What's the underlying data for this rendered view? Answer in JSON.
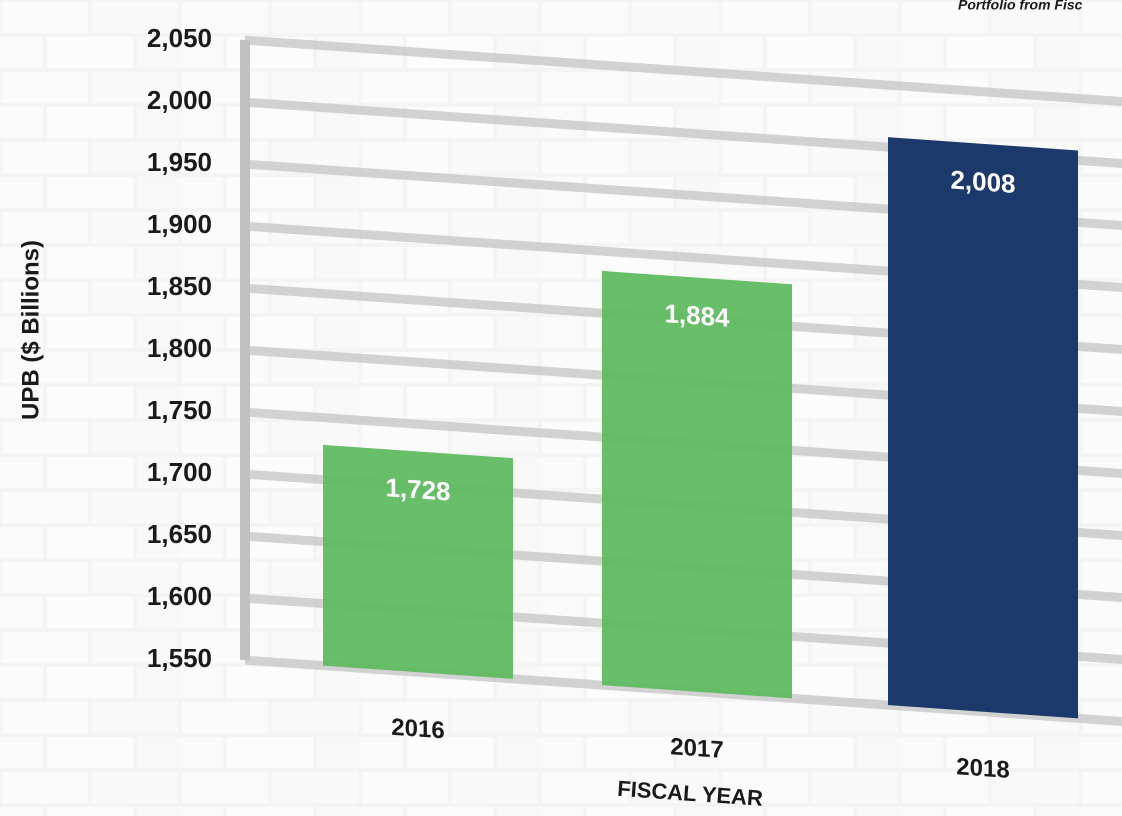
{
  "chart_data": {
    "type": "bar",
    "subtitle": "Portfolio from Fisc",
    "categories": [
      "2016",
      "2017",
      "2018"
    ],
    "values": [
      1728,
      1884,
      2008
    ],
    "value_labels": [
      "1,728",
      "1,884",
      "2,008"
    ],
    "colors": [
      "#5cb85c",
      "#5cb85c",
      "#1b3a6b"
    ],
    "ylim": [
      1550,
      2050
    ],
    "yticks": [
      {
        "value": 1550,
        "label": "1,550"
      },
      {
        "value": 1600,
        "label": "1,600"
      },
      {
        "value": 1650,
        "label": "1,650"
      },
      {
        "value": 1700,
        "label": "1,700"
      },
      {
        "value": 1750,
        "label": "1,750"
      },
      {
        "value": 1800,
        "label": "1,800"
      },
      {
        "value": 1850,
        "label": "1,850"
      },
      {
        "value": 1900,
        "label": "1,900"
      },
      {
        "value": 1950,
        "label": "1,950"
      },
      {
        "value": 2000,
        "label": "2,000"
      },
      {
        "value": 2050,
        "label": "2,050"
      }
    ],
    "ylabel": "UPB ($ Billions)",
    "xlabel": "FISCAL YEAR",
    "grid": true
  }
}
